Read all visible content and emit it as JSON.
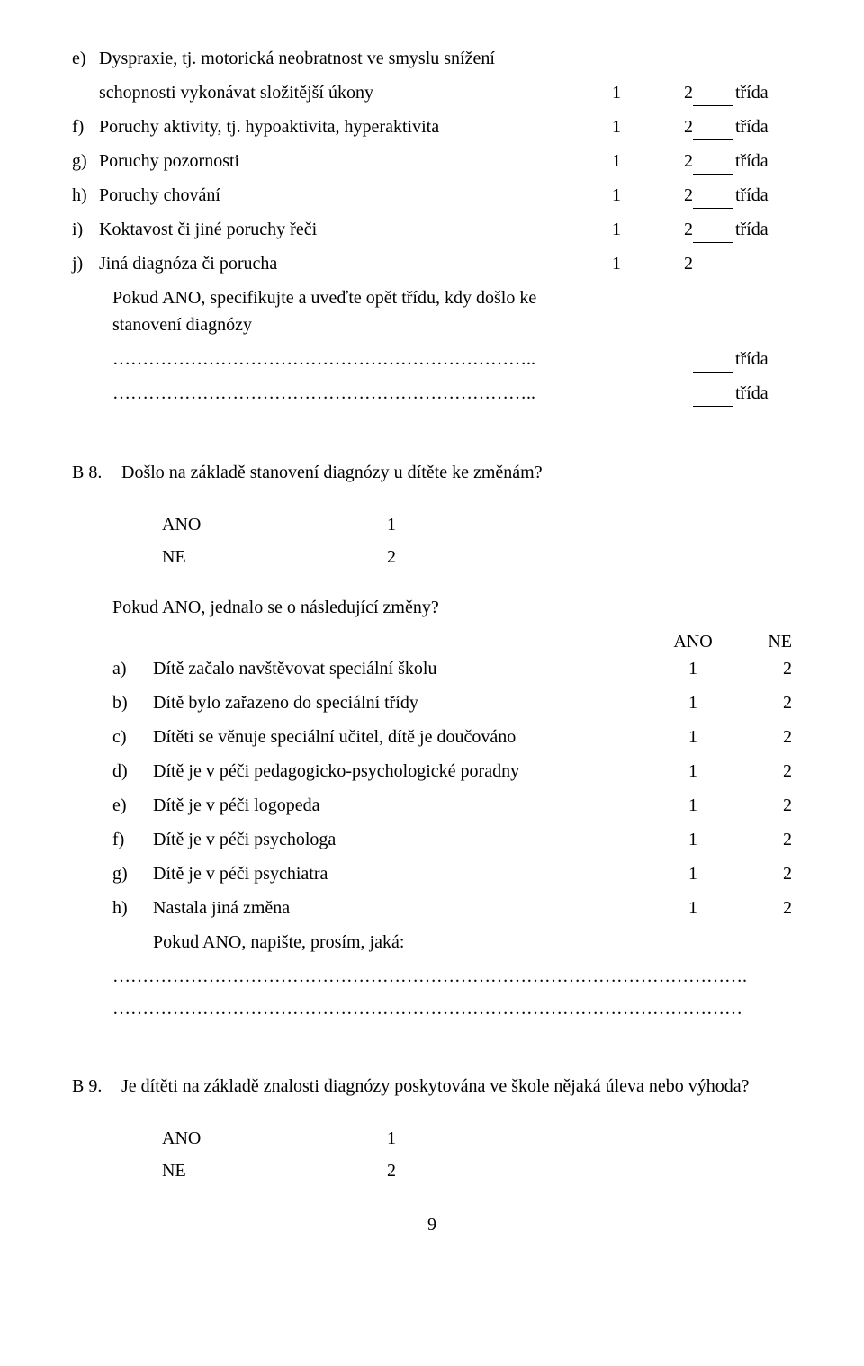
{
  "q_e": {
    "letter": "e)",
    "line1": "Dyspraxie, tj. motorická neobratnost ve smyslu snížení",
    "line2": "schopnosti vykonávat složitější úkony",
    "n1": "1",
    "n2": "2",
    "fill_suffix": "třída"
  },
  "q_f": {
    "letter": "f)",
    "line1": "Poruchy aktivity, tj. hypoaktivita, hyperaktivita",
    "n1": "1",
    "n2": "2",
    "fill_suffix": "třída"
  },
  "q_g": {
    "letter": "g)",
    "line1": "Poruchy pozornosti",
    "n1": "1",
    "n2": "2",
    "fill_suffix": "třída"
  },
  "q_h": {
    "letter": "h)",
    "line1": "Poruchy chování",
    "n1": "1",
    "n2": "2",
    "fill_suffix": "třída"
  },
  "q_i": {
    "letter": "i)",
    "line1": "Koktavost či jiné poruchy řeči",
    "n1": "1",
    "n2": "2",
    "fill_suffix": "třída"
  },
  "q_j": {
    "letter": "j)",
    "line1": "Jiná diagnóza či porucha",
    "n1": "1",
    "n2": "2",
    "fill_suffix": ""
  },
  "spec_prompt": "Pokud ANO, specifikujte a uveďte opět třídu, kdy došlo ke stanovení diagnózy",
  "spec_dots1": "……………………………………………………………..",
  "spec_dots2": "……………………………………………………………..",
  "spec_fill_suffix": "třída",
  "b8": {
    "num": "B 8.",
    "text": "Došlo na základě stanovení diagnózy u dítěte ke změnám?",
    "ano": "ANO",
    "ano_v": "1",
    "ne": "NE",
    "ne_v": "2",
    "follow": "Pokud ANO, jednalo se o následující změny?",
    "head_ano": "ANO",
    "head_ne": "NE",
    "rows": [
      {
        "l": "a)",
        "t": "Dítě začalo navštěvovat speciální školu",
        "c1": "1",
        "c2": "2"
      },
      {
        "l": "b)",
        "t": "Dítě bylo zařazeno do speciální třídy",
        "c1": "1",
        "c2": "2"
      },
      {
        "l": "c)",
        "t": "Dítěti se věnuje speciální učitel, dítě je doučováno",
        "c1": "1",
        "c2": "2"
      },
      {
        "l": "d)",
        "t": "Dítě je v péči pedagogicko-psychologické poradny",
        "c1": "1",
        "c2": "2"
      },
      {
        "l": "e)",
        "t": "Dítě je v péči logopeda",
        "c1": "1",
        "c2": "2"
      },
      {
        "l": "f)",
        "t": "Dítě je v péči psychologa",
        "c1": "1",
        "c2": "2"
      },
      {
        "l": "g)",
        "t": "Dítě je v péči psychiatra",
        "c1": "1",
        "c2": "2"
      },
      {
        "l": "h)",
        "t": "Nastala jiná změna",
        "c1": "1",
        "c2": "2"
      }
    ],
    "other_prompt": "Pokud ANO, napište, prosím, jaká:",
    "dots1": "…………………………………………………………………………………………….",
    "dots2": "……………………………………………………………………………………………"
  },
  "b9": {
    "num": "B 9.",
    "text": "Je dítěti na základě znalosti diagnózy poskytována ve škole nějaká úleva nebo výhoda?",
    "ano": "ANO",
    "ano_v": "1",
    "ne": "NE",
    "ne_v": "2"
  },
  "page_number": "9"
}
